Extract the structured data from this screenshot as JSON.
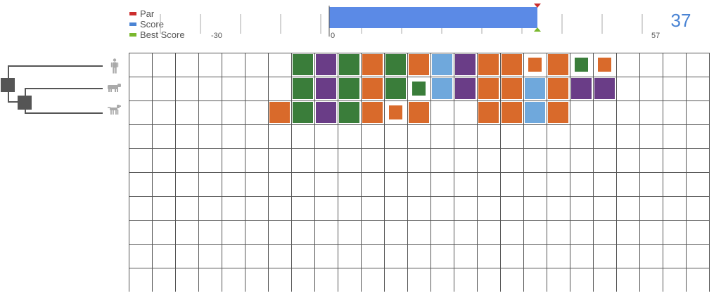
{
  "legend": {
    "items": [
      {
        "label": "Par",
        "color": "#cc2d2d"
      },
      {
        "label": "Score",
        "color": "#4a84d4"
      },
      {
        "label": "Best Score",
        "color": "#7ab82e"
      }
    ]
  },
  "score_bar": {
    "min_label": "-30",
    "zero_label": "0",
    "max_label": "57",
    "min": -30,
    "max": 57,
    "value": 37,
    "par": 37,
    "best": 37,
    "bar_color": "#5b8ae6"
  },
  "score_display": "37",
  "tree": {
    "species": [
      {
        "icon": "human-icon"
      },
      {
        "icon": "cow-icon"
      },
      {
        "icon": "dog-icon"
      }
    ]
  },
  "colors": {
    "G": "#3a7d3a",
    "P": "#6a3d87",
    "O": "#d96a2b",
    "B": "#6fa8dc"
  },
  "board": {
    "columns": 25,
    "rows": 10,
    "sequences": [
      [
        "",
        "",
        "",
        "",
        "",
        "",
        "",
        "G",
        "P",
        "G",
        "O",
        "G",
        "O",
        "B",
        "P",
        "O",
        "O",
        "o",
        "O",
        "g",
        "o",
        "",
        "",
        "",
        ""
      ],
      [
        "",
        "",
        "",
        "",
        "",
        "",
        "",
        "G",
        "P",
        "G",
        "O",
        "G",
        "g",
        "B",
        "P",
        "O",
        "O",
        "B",
        "O",
        "P",
        "P",
        "",
        "",
        "",
        ""
      ],
      [
        "",
        "",
        "",
        "",
        "",
        "",
        "O",
        "G",
        "P",
        "G",
        "O",
        "o",
        "O",
        "",
        "",
        "O",
        "O",
        "B",
        "O",
        "",
        "",
        "",
        "",
        "",
        ""
      ]
    ]
  }
}
